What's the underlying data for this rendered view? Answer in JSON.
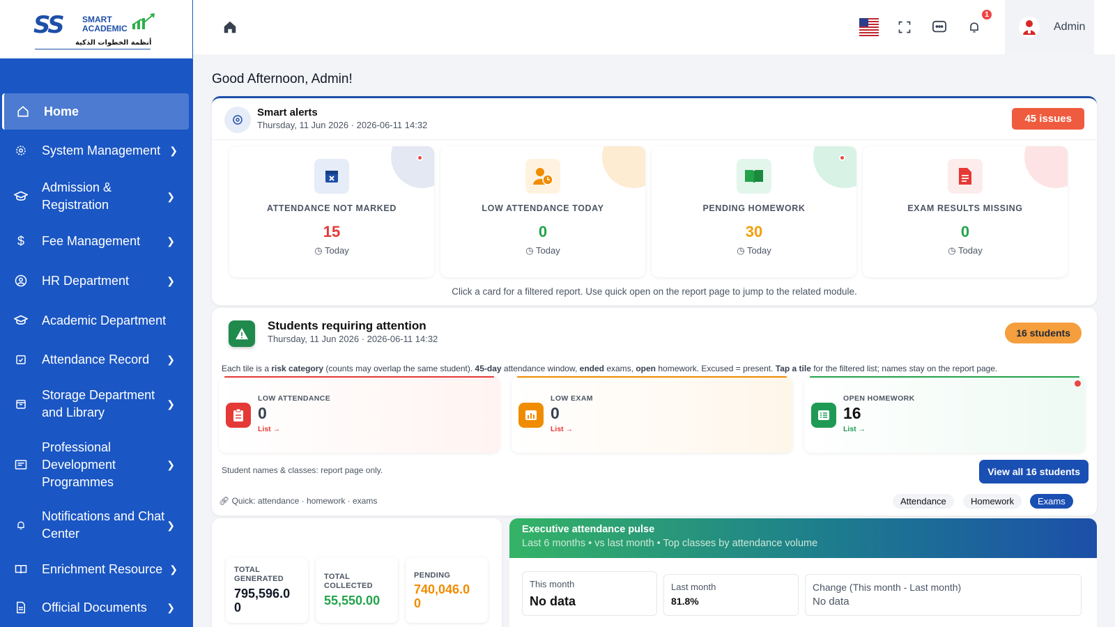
{
  "logo": {
    "mark": "SS",
    "brand_line1": "SMART",
    "brand_line2": "ACADEMIC",
    "arabic": "أنظمة الخطوات الذكية"
  },
  "sidebar": {
    "items": [
      {
        "label": "Home",
        "icon": "home-icon"
      },
      {
        "label": "System Management",
        "icon": "gear-icon"
      },
      {
        "label": "Admission & Registration",
        "icon": "graduation-cap-icon"
      },
      {
        "label": "Fee Management",
        "icon": "dollar-icon"
      },
      {
        "label": "HR Department",
        "icon": "user-circle-icon"
      },
      {
        "label": "Academic Department",
        "icon": "graduation-cap-icon"
      },
      {
        "label": "Attendance Record",
        "icon": "calendar-check-icon"
      },
      {
        "label": "Storage Department and Library",
        "icon": "storage-icon"
      },
      {
        "label": "Professional Development Programmes",
        "icon": "certificate-icon"
      },
      {
        "label": "Notifications and Chat Center",
        "icon": "bell-icon"
      },
      {
        "label": "Enrichment Resource",
        "icon": "book-icon"
      },
      {
        "label": "Official Documents",
        "icon": "document-icon"
      }
    ]
  },
  "topbar": {
    "notification_count": "1",
    "user_name": "Admin"
  },
  "greeting": "Good Afternoon, Admin!",
  "alerts": {
    "title": "Smart alerts",
    "date": "Thursday, 11 Jun 2026 · 2026-06-11 14:32",
    "issues": "45 issues",
    "cards": [
      {
        "label": "ATTENDANCE NOT MARKED",
        "value": "15",
        "period": "Today",
        "color": "#e53935"
      },
      {
        "label": "LOW ATTENDANCE TODAY",
        "value": "0",
        "period": "Today",
        "color": "#22a34a"
      },
      {
        "label": "PENDING HOMEWORK",
        "value": "30",
        "period": "Today",
        "color": "#f59e0b"
      },
      {
        "label": "EXAM RESULTS MISSING",
        "value": "0",
        "period": "Today",
        "color": "#22a34a"
      }
    ],
    "footer": "Click a card for a filtered report. Use quick open on the report page to jump to the related module."
  },
  "attention": {
    "title": "Students requiring attention",
    "date": "Thursday, 11 Jun 2026 · 2026-06-11 14:32",
    "badge": "16 students",
    "desc_parts": [
      "Each tile is a ",
      "risk category",
      " (counts may overlap the same student). ",
      "45-day",
      " attendance window, ",
      "ended",
      " exams, ",
      "open",
      " homework. Excused = present. ",
      "Tap a tile",
      " for the filtered list; names stay on the report page."
    ],
    "tiles": [
      {
        "label": "LOW ATTENDANCE",
        "value": "0",
        "link": "List →"
      },
      {
        "label": "LOW EXAM",
        "value": "0",
        "link": "List →"
      },
      {
        "label": "OPEN HOMEWORK",
        "value": "16",
        "link": "List →"
      }
    ],
    "note": "Student names & classes: report page only.",
    "view_all": "View all 16 students",
    "quick": "Quick: attendance · homework · exams",
    "chips": [
      "Attendance",
      "Homework",
      "Exams"
    ]
  },
  "fees": {
    "boxes": [
      {
        "label_line1": "TOTAL",
        "label_line2": "GENERATED",
        "value_line1": "795,596.0",
        "value_line2": "0",
        "color": "#111827"
      },
      {
        "label_line1": "TOTAL",
        "label_line2": "COLLECTED",
        "value_line1": "55,550.00",
        "value_line2": "",
        "color": "#22a34a"
      },
      {
        "label_line1": "PENDING",
        "label_line2": "",
        "value_line1": "740,046.0",
        "value_line2": "0",
        "color": "#f08c00"
      }
    ]
  },
  "pulse": {
    "title": "Executive attendance pulse",
    "subtitle": "Last 6 months • vs last month • Top classes by attendance volume",
    "this_month_label": "This month",
    "this_month_value": "No data",
    "last_month_label": "Last month",
    "last_month_value": "81.8%",
    "change_label": "Change (This month - Last month)",
    "change_value": "No data"
  }
}
